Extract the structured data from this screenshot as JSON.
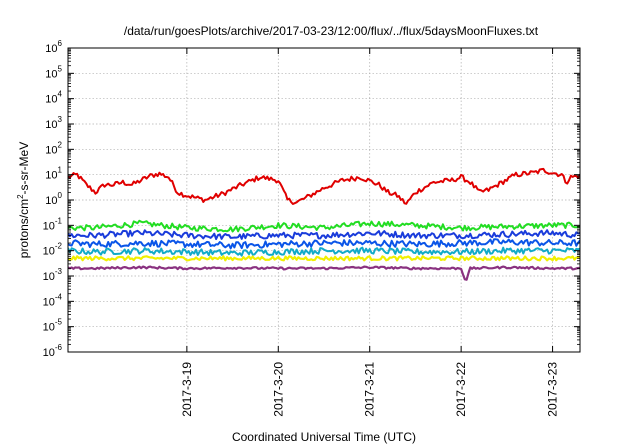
{
  "chart_data": {
    "type": "line",
    "title": "/data/run/goesPlots/archive/2017-03-23/12:00/flux/../flux/5daysMoonFluxes.txt",
    "xlabel": "Coordinated Universal Time (UTC)",
    "ylabel": "protons/cm2-s-sr-MeV",
    "ylabel_parts": {
      "pre": "protons/cm",
      "sup": "2",
      "post": "-s-sr-MeV"
    },
    "yscale": "log",
    "ylim_exp": [
      -6,
      6
    ],
    "ytick_base": "10",
    "ytick_exponents": [
      "6",
      "5",
      "4",
      "3",
      "2",
      "1",
      "0",
      "-1",
      "-2",
      "-3",
      "-4",
      "-5",
      "-6"
    ],
    "xlim_days": [
      -1.3,
      4.3
    ],
    "xticks": [
      {
        "label": "2017-3-19",
        "day": 0
      },
      {
        "label": "2017-3-20",
        "day": 1
      },
      {
        "label": "2017-3-21",
        "day": 2
      },
      {
        "label": "2017-3-22",
        "day": 3
      },
      {
        "label": "2017-3-23",
        "day": 4
      }
    ],
    "grid": true,
    "colors": {
      "red": "#e00000",
      "green": "#22dd22",
      "blue1": "#1a3cdb",
      "blue2": "#0a55e8",
      "cyan": "#12aac8",
      "yellow": "#f0f000",
      "purple": "#8a3280",
      "grid": "#b0b0b0"
    },
    "series": [
      {
        "color": "#e00000",
        "width": 2.0,
        "points": [
          [
            -1.3,
            8
          ],
          [
            -1.2,
            10
          ],
          [
            -1.1,
            4
          ],
          [
            -1.0,
            2
          ],
          [
            -0.9,
            4
          ],
          [
            -0.8,
            4
          ],
          [
            -0.7,
            5
          ],
          [
            -0.6,
            4
          ],
          [
            -0.5,
            6
          ],
          [
            -0.4,
            9
          ],
          [
            -0.3,
            11
          ],
          [
            -0.2,
            8
          ],
          [
            -0.1,
            2
          ],
          [
            0.0,
            1.5
          ],
          [
            0.2,
            1.0
          ],
          [
            0.4,
            1.8
          ],
          [
            0.6,
            4
          ],
          [
            0.8,
            8
          ],
          [
            1.0,
            6
          ],
          [
            1.1,
            1.0
          ],
          [
            1.2,
            0.8
          ],
          [
            1.3,
            1.2
          ],
          [
            1.5,
            3
          ],
          [
            1.7,
            6
          ],
          [
            1.9,
            8
          ],
          [
            2.1,
            4
          ],
          [
            2.2,
            2
          ],
          [
            2.3,
            1.5
          ],
          [
            2.4,
            0.7
          ],
          [
            2.5,
            2
          ],
          [
            2.7,
            5
          ],
          [
            2.9,
            6
          ],
          [
            3.0,
            8
          ],
          [
            3.1,
            5
          ],
          [
            3.2,
            2
          ],
          [
            3.3,
            2.5
          ],
          [
            3.4,
            4
          ],
          [
            3.6,
            10
          ],
          [
            3.8,
            12
          ],
          [
            3.9,
            15
          ],
          [
            4.0,
            12
          ],
          [
            4.1,
            10
          ],
          [
            4.15,
            5
          ],
          [
            4.2,
            8
          ],
          [
            4.3,
            9
          ]
        ]
      },
      {
        "color": "#22dd22",
        "width": 2.0,
        "points": [
          [
            -1.3,
            0.08
          ],
          [
            -1.0,
            0.08
          ],
          [
            -0.5,
            0.12
          ],
          [
            0.0,
            0.08
          ],
          [
            0.5,
            0.07
          ],
          [
            1.0,
            0.1
          ],
          [
            1.5,
            0.08
          ],
          [
            2.0,
            0.12
          ],
          [
            2.5,
            0.1
          ],
          [
            3.0,
            0.08
          ],
          [
            3.5,
            0.09
          ],
          [
            4.0,
            0.1
          ],
          [
            4.3,
            0.1
          ]
        ]
      },
      {
        "color": "#1a3cdb",
        "width": 2.0,
        "points": [
          [
            -1.3,
            0.04
          ],
          [
            -1.0,
            0.04
          ],
          [
            -0.5,
            0.05
          ],
          [
            0.0,
            0.04
          ],
          [
            0.5,
            0.035
          ],
          [
            1.0,
            0.04
          ],
          [
            1.5,
            0.04
          ],
          [
            2.0,
            0.05
          ],
          [
            2.5,
            0.04
          ],
          [
            3.0,
            0.04
          ],
          [
            3.5,
            0.045
          ],
          [
            4.0,
            0.05
          ],
          [
            4.3,
            0.04
          ]
        ]
      },
      {
        "color": "#0a55e8",
        "width": 2.0,
        "points": [
          [
            -1.3,
            0.02
          ],
          [
            -1.0,
            0.018
          ],
          [
            -0.5,
            0.02
          ],
          [
            0.0,
            0.018
          ],
          [
            0.5,
            0.016
          ],
          [
            1.0,
            0.018
          ],
          [
            1.5,
            0.02
          ],
          [
            2.0,
            0.02
          ],
          [
            2.5,
            0.018
          ],
          [
            3.0,
            0.02
          ],
          [
            3.5,
            0.022
          ],
          [
            4.0,
            0.02
          ],
          [
            4.3,
            0.02
          ]
        ]
      },
      {
        "color": "#12aac8",
        "width": 2.0,
        "points": [
          [
            -1.3,
            0.01
          ],
          [
            -1.0,
            0.009
          ],
          [
            -0.5,
            0.01
          ],
          [
            0.0,
            0.009
          ],
          [
            0.5,
            0.008
          ],
          [
            1.0,
            0.009
          ],
          [
            1.5,
            0.01
          ],
          [
            2.0,
            0.01
          ],
          [
            2.5,
            0.009
          ],
          [
            3.0,
            0.009
          ],
          [
            3.5,
            0.01
          ],
          [
            4.0,
            0.01
          ],
          [
            4.3,
            0.01
          ]
        ]
      },
      {
        "color": "#f0f000",
        "width": 2.2,
        "points": [
          [
            -1.3,
            0.005
          ],
          [
            4.3,
            0.005
          ]
        ]
      },
      {
        "color": "#8a3280",
        "width": 2.2,
        "points": [
          [
            -1.3,
            0.002
          ],
          [
            -1.0,
            0.002
          ],
          [
            -0.5,
            0.0022
          ],
          [
            0.0,
            0.002
          ],
          [
            0.5,
            0.0021
          ],
          [
            1.0,
            0.002
          ],
          [
            1.5,
            0.002
          ],
          [
            2.0,
            0.0022
          ],
          [
            2.5,
            0.002
          ],
          [
            3.0,
            0.002
          ],
          [
            3.05,
            0.0006
          ],
          [
            3.1,
            0.002
          ],
          [
            3.5,
            0.0022
          ],
          [
            4.0,
            0.002
          ],
          [
            4.3,
            0.002
          ]
        ]
      }
    ]
  }
}
